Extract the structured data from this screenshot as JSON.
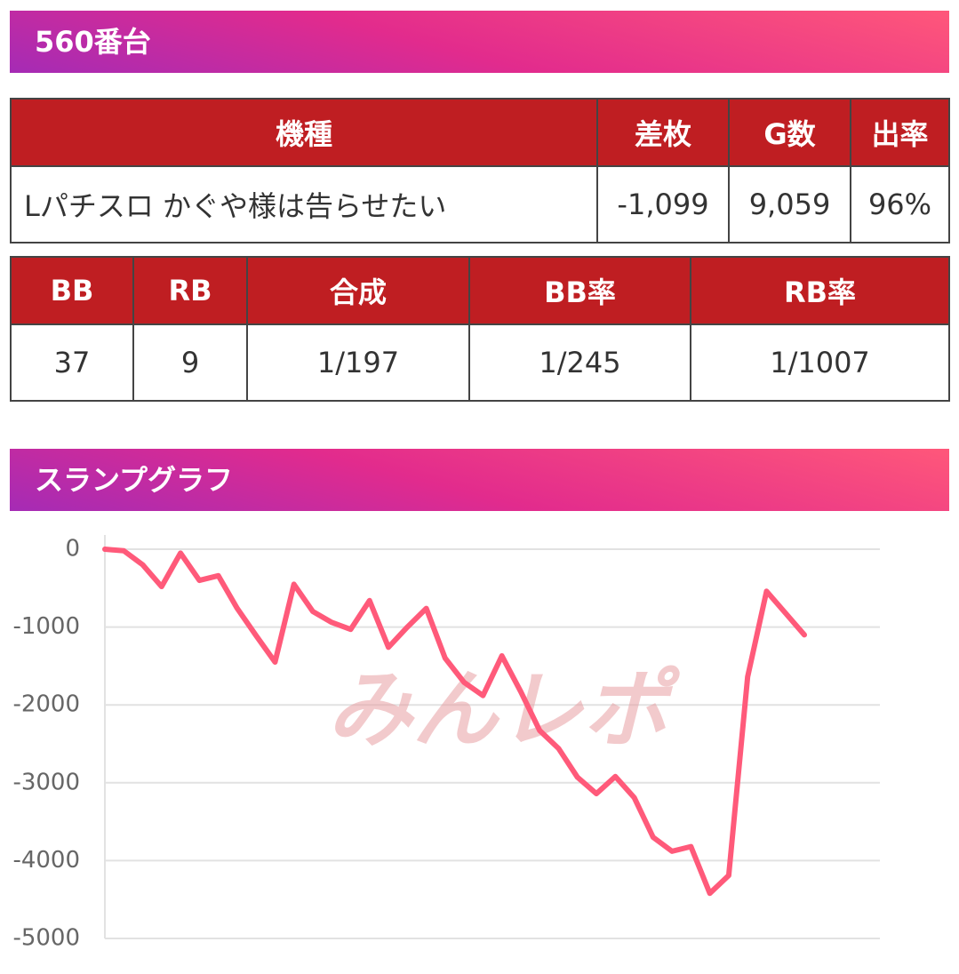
{
  "header": {
    "title": "560番台"
  },
  "machine_table": {
    "columns": [
      "機種",
      "差枚",
      "G数",
      "出率"
    ],
    "row": [
      "Lパチスロ かぐや様は告らせたい",
      "-1,099",
      "9,059",
      "96%"
    ]
  },
  "bonus_table": {
    "columns": [
      "BB",
      "RB",
      "合成",
      "BB率",
      "RB率"
    ],
    "row": [
      "37",
      "9",
      "1/197",
      "1/245",
      "1/1007"
    ]
  },
  "graph_section": {
    "title": "スランプグラフ"
  },
  "chart_data": {
    "type": "line",
    "watermark": "みんレポ",
    "categories": [
      null,
      null,
      null,
      null,
      null,
      null,
      null,
      null,
      null,
      null,
      null,
      null,
      null,
      null,
      null,
      null,
      null,
      null,
      null,
      null,
      null,
      null,
      null,
      null,
      null,
      null,
      null,
      null,
      null,
      null,
      null,
      null,
      null,
      null,
      null,
      null,
      null,
      null
    ],
    "series": [
      {
        "name": null,
        "color": "#ff5a7a",
        "values": [
          0,
          -20,
          -200,
          -480,
          -50,
          -400,
          -340,
          -760,
          -1110,
          -1450,
          -450,
          -800,
          -940,
          -1030,
          -660,
          -1260,
          -1000,
          -760,
          -1400,
          -1710,
          -1880,
          -1370,
          -1830,
          -2330,
          -2560,
          -2930,
          -3140,
          -2920,
          -3190,
          -3700,
          -3880,
          -3820,
          -4420,
          -4190,
          -1640,
          -540,
          -820,
          -1100
        ]
      }
    ],
    "ylim": [
      -5000,
      0
    ],
    "yticks": [
      0,
      -1000,
      -2000,
      -3000,
      -4000,
      -5000
    ],
    "grid": true
  }
}
